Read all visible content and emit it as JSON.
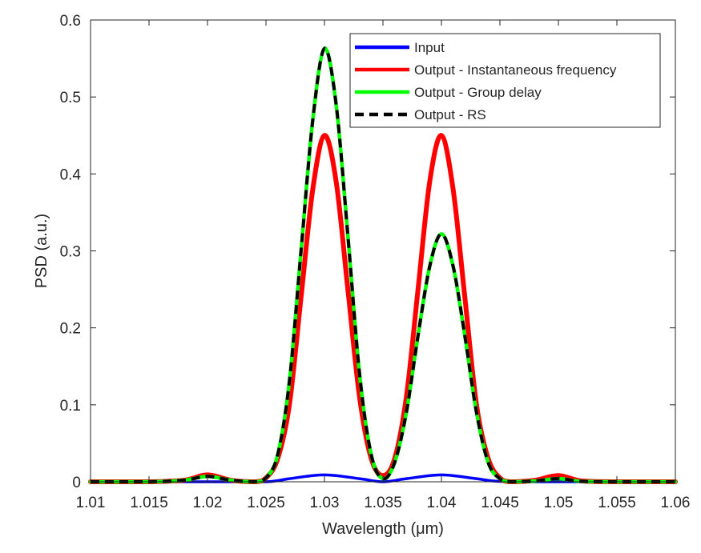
{
  "chart_data": {
    "type": "line",
    "title": "",
    "xlabel": "Wavelength (μm)",
    "ylabel": "PSD (a.u.)",
    "xlim": [
      1.01,
      1.06
    ],
    "ylim": [
      0,
      0.6
    ],
    "xticks": [
      "1.01",
      "1.015",
      "1.02",
      "1.025",
      "1.03",
      "1.035",
      "1.04",
      "1.045",
      "1.05",
      "1.055",
      "1.06"
    ],
    "yticks": [
      "0",
      "0.1",
      "0.2",
      "0.3",
      "0.4",
      "0.5",
      "0.6"
    ],
    "grid": false,
    "legend_position": "top-right",
    "series": [
      {
        "name": "Input",
        "color": "#0000ff",
        "style": "solid",
        "x": [
          1.01,
          1.015,
          1.02,
          1.025,
          1.027,
          1.03,
          1.033,
          1.035,
          1.037,
          1.04,
          1.043,
          1.045,
          1.05,
          1.055,
          1.06
        ],
        "y": [
          0,
          0,
          0,
          0,
          0.004,
          0.009,
          0.004,
          0.0,
          0.004,
          0.009,
          0.004,
          0.0005,
          0.0,
          0,
          0
        ]
      },
      {
        "name": "Output - Instantaneous frequency",
        "color": "#ff0000",
        "style": "solid",
        "x": [
          1.01,
          1.015,
          1.018,
          1.02,
          1.022,
          1.024,
          1.025,
          1.026,
          1.027,
          1.028,
          1.029,
          1.03,
          1.031,
          1.032,
          1.033,
          1.034,
          1.035,
          1.036,
          1.037,
          1.038,
          1.039,
          1.04,
          1.041,
          1.042,
          1.043,
          1.044,
          1.045,
          1.046,
          1.048,
          1.05,
          1.052,
          1.055,
          1.06
        ],
        "y": [
          0,
          0,
          0.002,
          0.009,
          0.002,
          0.0,
          0.005,
          0.03,
          0.1,
          0.24,
          0.38,
          0.45,
          0.39,
          0.25,
          0.11,
          0.03,
          0.008,
          0.03,
          0.11,
          0.25,
          0.39,
          0.45,
          0.38,
          0.24,
          0.1,
          0.03,
          0.005,
          0.0,
          0.002,
          0.008,
          0.001,
          0,
          0
        ]
      },
      {
        "name": "Output - Group delay",
        "color": "#00ff00",
        "style": "solid",
        "x": [
          1.01,
          1.015,
          1.018,
          1.02,
          1.022,
          1.024,
          1.025,
          1.026,
          1.027,
          1.028,
          1.029,
          1.03,
          1.031,
          1.032,
          1.033,
          1.034,
          1.035,
          1.036,
          1.037,
          1.038,
          1.039,
          1.04,
          1.041,
          1.042,
          1.043,
          1.044,
          1.045,
          1.046,
          1.048,
          1.05,
          1.052,
          1.055,
          1.06
        ],
        "y": [
          0,
          0,
          0.002,
          0.007,
          0.002,
          0.0,
          0.005,
          0.035,
          0.13,
          0.3,
          0.47,
          0.563,
          0.49,
          0.32,
          0.14,
          0.035,
          0.004,
          0.025,
          0.09,
          0.19,
          0.28,
          0.322,
          0.28,
          0.19,
          0.09,
          0.025,
          0.004,
          0.0,
          0.001,
          0.004,
          0.0005,
          0,
          0
        ]
      },
      {
        "name": "Output - RS",
        "color": "#000000",
        "style": "dashed",
        "x": [
          1.01,
          1.015,
          1.018,
          1.02,
          1.022,
          1.024,
          1.025,
          1.026,
          1.027,
          1.028,
          1.029,
          1.03,
          1.031,
          1.032,
          1.033,
          1.034,
          1.035,
          1.036,
          1.037,
          1.038,
          1.039,
          1.04,
          1.041,
          1.042,
          1.043,
          1.044,
          1.045,
          1.046,
          1.048,
          1.05,
          1.052,
          1.055,
          1.06
        ],
        "y": [
          0,
          0,
          0.002,
          0.007,
          0.002,
          0.0,
          0.005,
          0.035,
          0.13,
          0.3,
          0.47,
          0.563,
          0.49,
          0.32,
          0.14,
          0.035,
          0.004,
          0.025,
          0.09,
          0.19,
          0.28,
          0.322,
          0.28,
          0.19,
          0.09,
          0.025,
          0.004,
          0.0,
          0.001,
          0.004,
          0.0005,
          0,
          0
        ]
      }
    ]
  }
}
